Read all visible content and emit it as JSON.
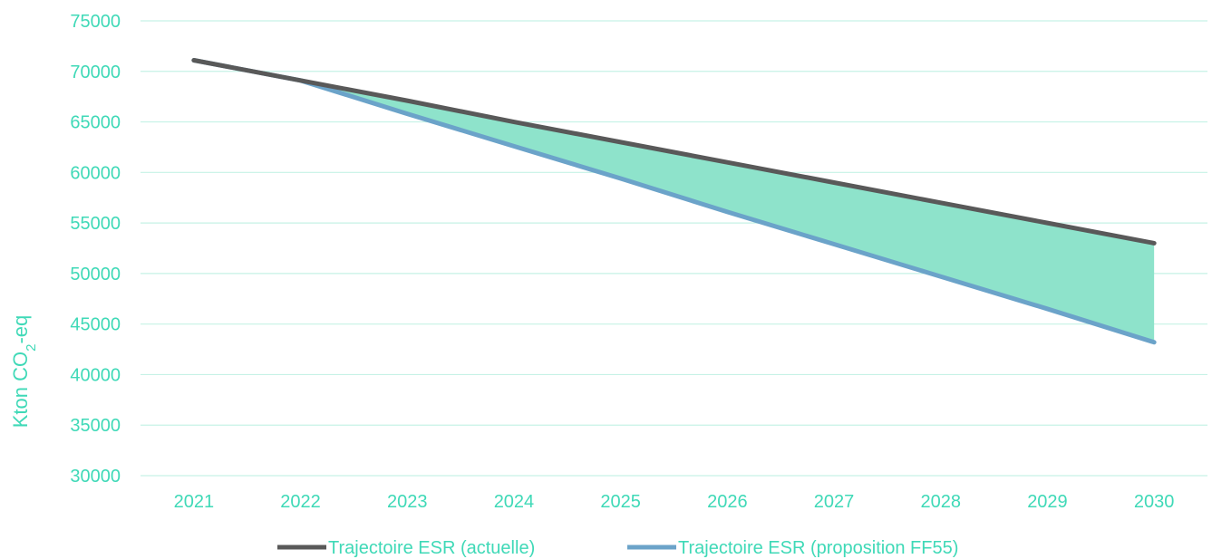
{
  "chart_data": {
    "type": "line",
    "title": "",
    "xlabel": "",
    "ylabel": "Kton CO2-eq",
    "ylabel_parts": {
      "prefix": "Kton CO",
      "subscript": "2",
      "suffix": "-eq"
    },
    "categories": [
      "2021",
      "2022",
      "2023",
      "2024",
      "2025",
      "2026",
      "2027",
      "2028",
      "2029",
      "2030"
    ],
    "ylim": [
      30000,
      75000
    ],
    "yticks": [
      30000,
      35000,
      40000,
      45000,
      50000,
      55000,
      60000,
      65000,
      70000,
      75000
    ],
    "grid": true,
    "legend_position": "bottom",
    "series": [
      {
        "name": "Trajectoire ESR (actuelle)",
        "color": "#595959",
        "values": [
          71100,
          69100,
          67100,
          65000,
          63000,
          61000,
          59000,
          57000,
          55000,
          53000
        ]
      },
      {
        "name": "Trajectoire ESR (proposition FF55)",
        "color": "#6ba3c9",
        "values": [
          71100,
          69100,
          65800,
          62600,
          59400,
          56100,
          52900,
          49700,
          46500,
          43200
        ]
      }
    ],
    "fill_between": {
      "series": [
        0,
        1
      ],
      "color": "#8ee3cb"
    },
    "colors": {
      "text": "#3fd9b7",
      "grid": "#c6f2e6"
    }
  }
}
